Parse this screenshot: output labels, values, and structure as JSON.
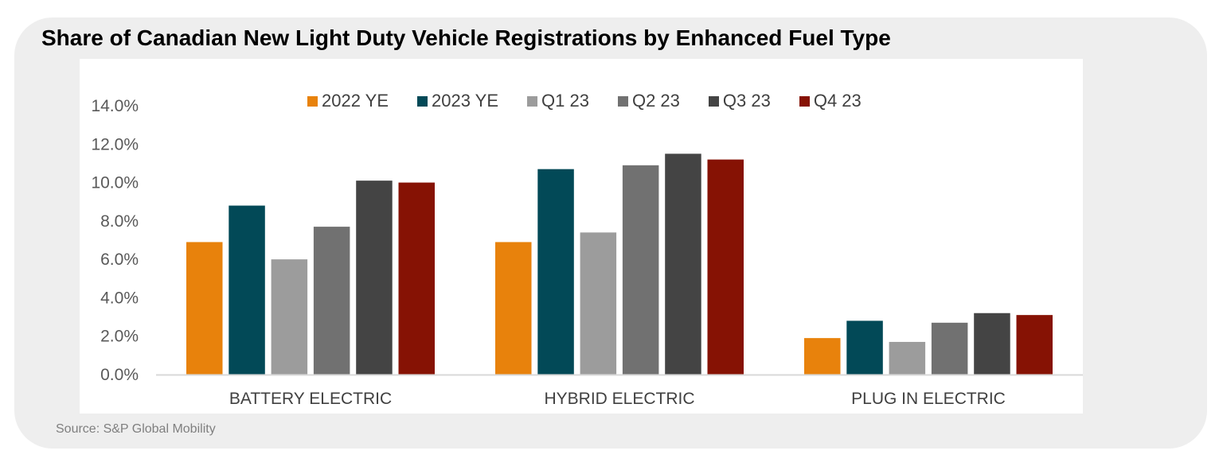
{
  "title": "Share of Canadian New Light Duty Vehicle Registrations by Enhanced Fuel Type",
  "source": "Source: S&P Global Mobility",
  "chart_data": {
    "type": "bar",
    "categories": [
      "BATTERY ELECTRIC",
      "HYBRID ELECTRIC",
      "PLUG IN ELECTRIC"
    ],
    "series": [
      {
        "name": "2022 YE",
        "color": "#e8820c",
        "values": [
          6.9,
          6.9,
          1.9
        ]
      },
      {
        "name": "2023 YE",
        "color": "#024957",
        "values": [
          8.8,
          10.7,
          2.8
        ]
      },
      {
        "name": "Q1 23",
        "color": "#9c9c9c",
        "values": [
          6.0,
          7.4,
          1.7
        ]
      },
      {
        "name": "Q2 23",
        "color": "#717171",
        "values": [
          7.7,
          10.9,
          2.7
        ]
      },
      {
        "name": "Q3 23",
        "color": "#444444",
        "values": [
          10.1,
          11.5,
          3.2
        ]
      },
      {
        "name": "Q4 23",
        "color": "#861204",
        "values": [
          10.0,
          11.2,
          3.1
        ]
      }
    ],
    "yticks": [
      "0.0%",
      "2.0%",
      "4.0%",
      "6.0%",
      "8.0%",
      "10.0%",
      "12.0%",
      "14.0%"
    ],
    "ylim": [
      0,
      14
    ],
    "xlabel": "",
    "ylabel": "",
    "grid": false,
    "legend_position": "top"
  }
}
